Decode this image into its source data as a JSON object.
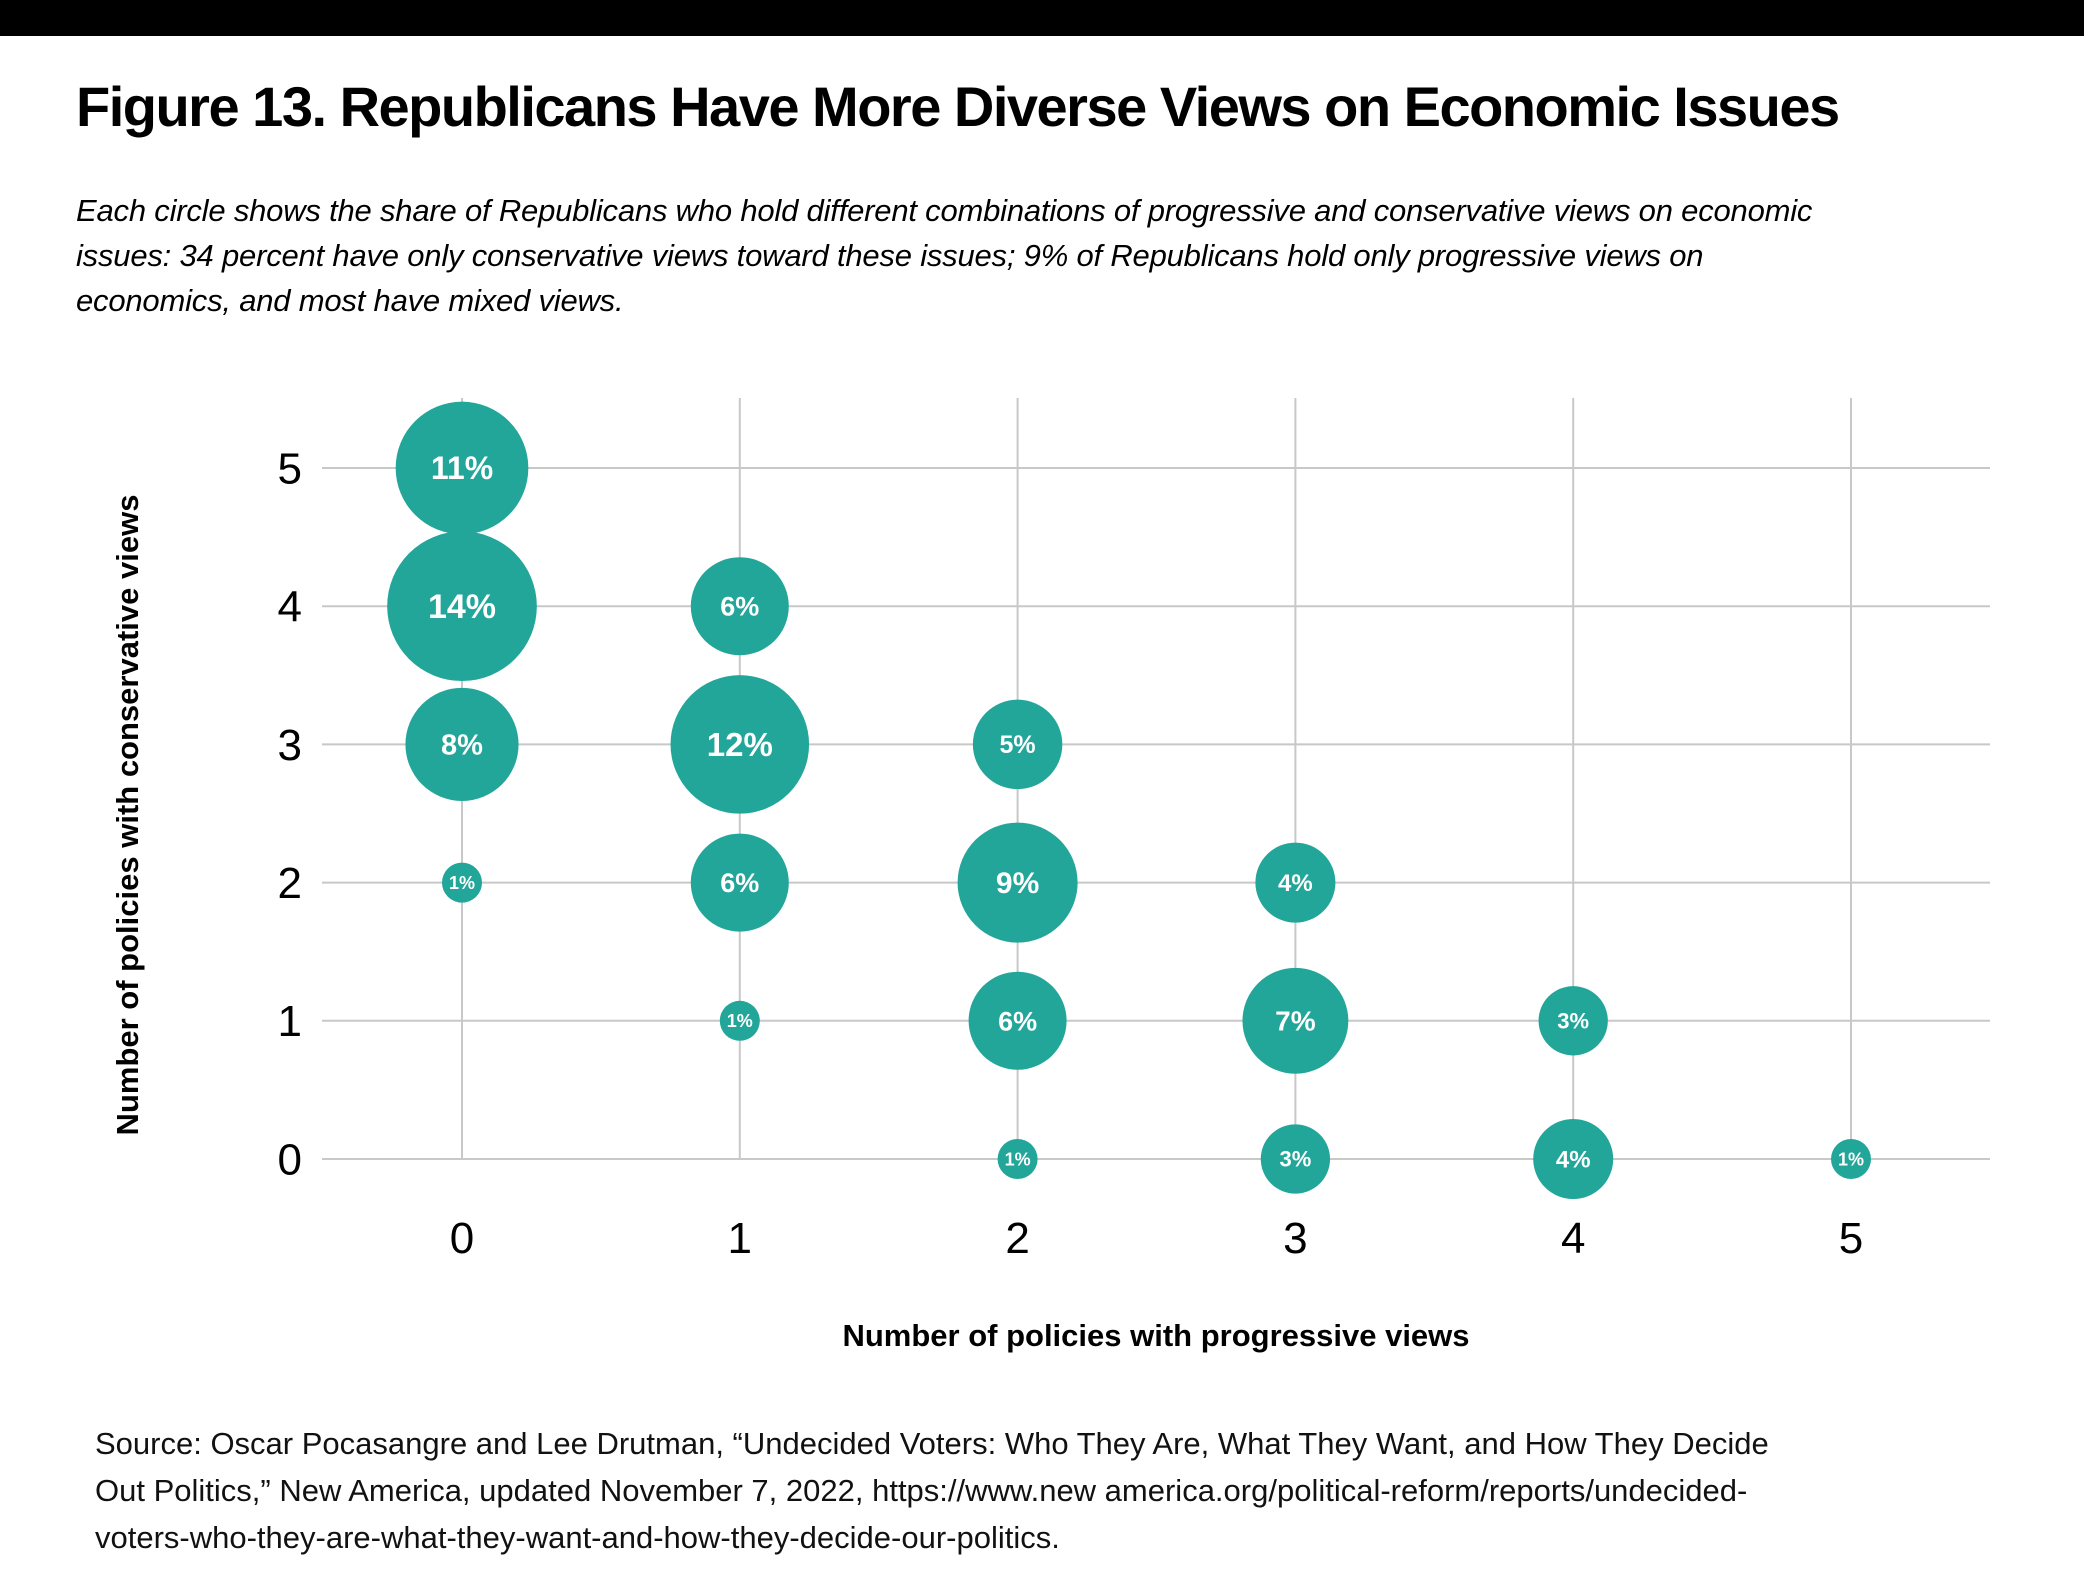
{
  "page": {
    "top_bar_color": "#000000",
    "title": "Figure 13. Republicans Have More Diverse Views on Economic Issues",
    "subtitle_lines": [
      "Each circle shows the share of Republicans who hold different combinations of progressive and conservative views on economic",
      "issues: 34 percent have only conservative views toward these issues; 9% of Republicans hold only progressive views on",
      "economics, and most have mixed views."
    ],
    "source_lines": [
      "Source: Oscar Pocasangre and Lee Drutman, “Undecided Voters: Who They Are, What They Want, and How They Decide",
      "Out Politics,” New America, updated November 7, 2022, https://www.new america.org/political-reform/reports/undecided-",
      "voters-who-they-are-what-they-want-and-how-they-decide-our-politics."
    ]
  },
  "chart_data": {
    "type": "scatter",
    "subtype": "bubble",
    "title": "",
    "xlabel": "Number of policies with progressive views",
    "ylabel": "Number of policies with conservative views",
    "x_ticks": [
      0,
      1,
      2,
      3,
      4,
      5
    ],
    "y_ticks": [
      0,
      1,
      2,
      3,
      4,
      5
    ],
    "xlim": [
      -0.5,
      5.5
    ],
    "ylim": [
      -0.5,
      5.5
    ],
    "grid": true,
    "grid_color": "#c8c8c8",
    "bubble_color": "#22A69A",
    "bubble_label_color": "#ffffff",
    "tick_color": "#000000",
    "axis_title_color": "#000000",
    "size_encoding": "circle size proportional to share of Republicans",
    "points": [
      {
        "x": 0,
        "y": 5,
        "value": 11,
        "label": "11%"
      },
      {
        "x": 0,
        "y": 4,
        "value": 14,
        "label": "14%"
      },
      {
        "x": 0,
        "y": 3,
        "value": 8,
        "label": "8%"
      },
      {
        "x": 0,
        "y": 2,
        "value": 1,
        "label": "1%"
      },
      {
        "x": 1,
        "y": 4,
        "value": 6,
        "label": "6%"
      },
      {
        "x": 1,
        "y": 3,
        "value": 12,
        "label": "12%"
      },
      {
        "x": 1,
        "y": 2,
        "value": 6,
        "label": "6%"
      },
      {
        "x": 1,
        "y": 1,
        "value": 1,
        "label": "1%"
      },
      {
        "x": 2,
        "y": 3,
        "value": 5,
        "label": "5%"
      },
      {
        "x": 2,
        "y": 2,
        "value": 9,
        "label": "9%"
      },
      {
        "x": 2,
        "y": 1,
        "value": 6,
        "label": "6%"
      },
      {
        "x": 2,
        "y": 0,
        "value": 1,
        "label": "1%"
      },
      {
        "x": 3,
        "y": 2,
        "value": 4,
        "label": "4%"
      },
      {
        "x": 3,
        "y": 1,
        "value": 7,
        "label": "7%"
      },
      {
        "x": 3,
        "y": 0,
        "value": 3,
        "label": "3%"
      },
      {
        "x": 4,
        "y": 1,
        "value": 3,
        "label": "3%"
      },
      {
        "x": 4,
        "y": 0,
        "value": 4,
        "label": "4%"
      },
      {
        "x": 5,
        "y": 0,
        "value": 1,
        "label": "1%"
      }
    ]
  }
}
